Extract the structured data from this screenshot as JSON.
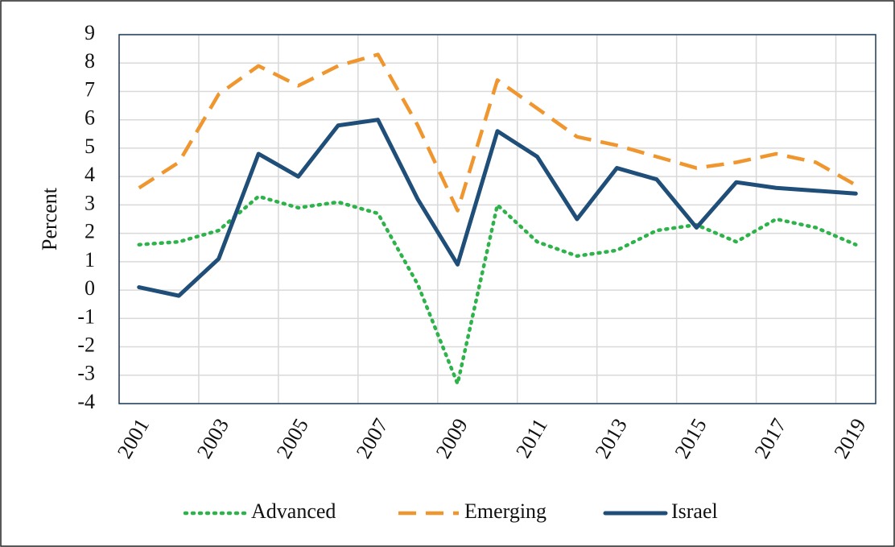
{
  "chart_data": {
    "type": "line",
    "y_label": "Percent",
    "categories": [
      "2001",
      null,
      "2003",
      null,
      "2005",
      null,
      "2007",
      null,
      "2009",
      null,
      "2011",
      null,
      "2013",
      null,
      "2015",
      null,
      "2017",
      null,
      "2019"
    ],
    "series": [
      {
        "name": "Advanced",
        "color": "#2db34a",
        "style": "dotted",
        "values": [
          1.6,
          1.7,
          2.1,
          3.3,
          2.9,
          3.1,
          2.7,
          0.2,
          -3.3,
          3.0,
          1.7,
          1.2,
          1.4,
          2.1,
          2.3,
          1.7,
          2.5,
          2.2,
          1.6
        ]
      },
      {
        "name": "Emerging",
        "color": "#f0962f",
        "style": "dashed",
        "values": [
          3.6,
          4.5,
          6.9,
          7.9,
          7.2,
          7.9,
          8.3,
          5.8,
          2.8,
          7.4,
          6.4,
          5.4,
          5.1,
          4.7,
          4.3,
          4.5,
          4.8,
          4.5,
          3.7
        ]
      },
      {
        "name": "Israel",
        "color": "#1f4e79",
        "style": "solid",
        "values": [
          0.1,
          -0.2,
          1.1,
          4.8,
          4.0,
          5.8,
          6.0,
          3.2,
          0.9,
          5.6,
          4.7,
          2.5,
          4.3,
          3.9,
          2.2,
          3.8,
          3.6,
          3.5,
          3.4
        ]
      }
    ],
    "ylim": [
      -4,
      9
    ],
    "yticks": [
      -4,
      -3,
      -2,
      -1,
      0,
      1,
      2,
      3,
      4,
      5,
      6,
      7,
      8,
      9
    ],
    "grid": true,
    "legend": "bottom"
  }
}
